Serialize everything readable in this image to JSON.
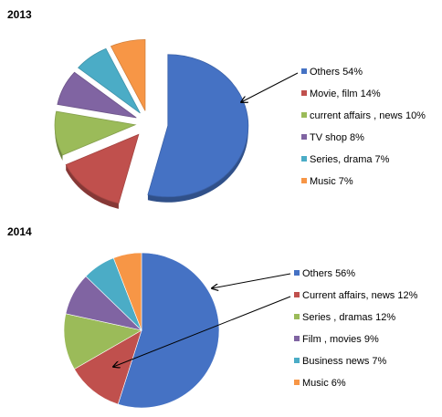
{
  "chart_data": [
    {
      "type": "pie",
      "title": "2013",
      "style": "exploded-3d",
      "slices": [
        {
          "label": "Others 54%",
          "value": 54,
          "color": "#4572c4"
        },
        {
          "label": "Movie, film 14%",
          "value": 14,
          "color": "#c0504d"
        },
        {
          "label": "current affairs , news 10%",
          "value": 10,
          "color": "#9bbb59"
        },
        {
          "label": "TV shop 8%",
          "value": 8,
          "color": "#8064a2"
        },
        {
          "label": "Series, drama 7%",
          "value": 7,
          "color": "#4bacc6"
        },
        {
          "label": "Music 7%",
          "value": 7,
          "color": "#f79646"
        }
      ],
      "legend_position": "right"
    },
    {
      "type": "pie",
      "title": "2014",
      "style": "flat",
      "slices": [
        {
          "label": "Others 56%",
          "value": 56,
          "color": "#4572c4"
        },
        {
          "label": "Current affairs, news 12%",
          "value": 12,
          "color": "#c0504d"
        },
        {
          "label": "Series , dramas 12%",
          "value": 12,
          "color": "#9bbb59"
        },
        {
          "label": "Film , movies 9%",
          "value": 9,
          "color": "#8064a2"
        },
        {
          "label": "Business news 7%",
          "value": 7,
          "color": "#4bacc6"
        },
        {
          "label": "Music 6%",
          "value": 6,
          "color": "#f79646"
        }
      ],
      "legend_position": "right"
    }
  ]
}
